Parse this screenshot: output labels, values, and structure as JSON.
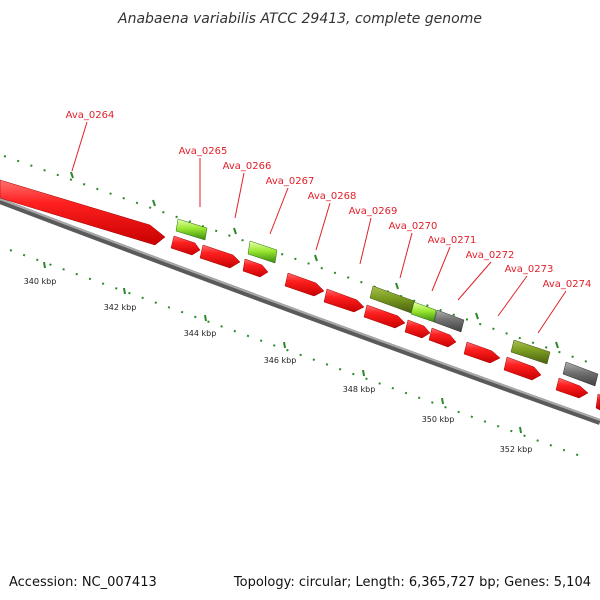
{
  "title": "Anabaena variabilis ATCC 29413, complete genome",
  "footer": {
    "accession": "Accession: NC_007413",
    "summary": "Topology: circular; Length: 6,365,727 bp; Genes: 5,104"
  },
  "scale_labels": [
    "340 kbp",
    "342 kbp",
    "344 kbp",
    "346 kbp",
    "348 kbp",
    "350 kbp",
    "352 kbp"
  ],
  "gene_labels": [
    "Ava_0264",
    "Ava_0265",
    "Ava_0266",
    "Ava_0267",
    "Ava_0268",
    "Ava_0269",
    "Ava_0270",
    "Ava_0271",
    "Ava_0272",
    "Ava_0273",
    "Ava_0274"
  ],
  "colors": {
    "gene": "#ff2020",
    "rna_light": "#7fe020",
    "rna_olive": "#7a9a20",
    "gray_feature": "#707070",
    "label": "#e0202a",
    "tick": "#2a8a2a",
    "backbone": "#8a8a8a"
  }
}
